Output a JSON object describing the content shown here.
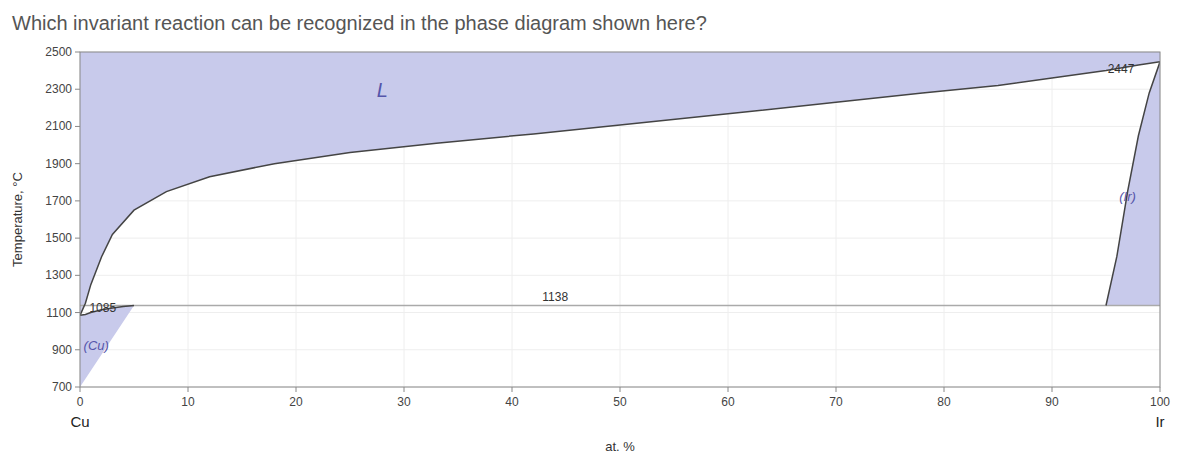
{
  "chart_data": {
    "type": "line",
    "title": "Which invariant reaction can be recognized in the phase diagram shown here?",
    "x_label": "at. %",
    "y_label": "Temperature, °C",
    "xlim": [
      0,
      100
    ],
    "ylim": [
      700,
      2500
    ],
    "xticks": [
      0,
      10,
      20,
      30,
      40,
      50,
      60,
      70,
      80,
      90,
      100
    ],
    "yticks": [
      700,
      900,
      1100,
      1300,
      1500,
      1700,
      1900,
      2100,
      2300,
      2500
    ],
    "color": "#c8caeb",
    "series": [
      {
        "color": "#444444",
        "x": [
          0,
          0.5,
          1,
          2,
          3,
          5,
          8,
          12,
          18,
          25,
          33,
          42,
          52,
          62,
          70,
          78,
          85,
          90,
          95,
          98,
          100
        ],
        "values": [
          1085,
          1150,
          1250,
          1400,
          1520,
          1650,
          1750,
          1830,
          1900,
          1960,
          2010,
          2060,
          2120,
          2180,
          2230,
          2280,
          2320,
          2360,
          2400,
          2430,
          2447
        ]
      },
      {
        "color": "#444444",
        "x": [
          0,
          0.5,
          1,
          2,
          3,
          4,
          5
        ],
        "values": [
          1085,
          1090,
          1100,
          1115,
          1125,
          1132,
          1138
        ]
      },
      {
        "color": "#444444",
        "x": [
          95,
          96,
          97,
          98,
          99,
          100
        ],
        "values": [
          1138,
          1400,
          1750,
          2050,
          2280,
          2447
        ]
      },
      {
        "color": "#aaaaaa",
        "x": [
          0,
          100
        ],
        "values": [
          1138,
          1138
        ]
      }
    ],
    "phase_labels": [
      {
        "text": "L",
        "x": 28,
        "y": 2260
      },
      {
        "text": "(Ir)",
        "x": 97,
        "y": 1700
      },
      {
        "text": "(Cu)",
        "x": 1.5,
        "y": 900
      }
    ],
    "annotations": [
      {
        "text": "1085",
        "x": 0.5,
        "y": 1085
      },
      {
        "text": "1138",
        "x": 44,
        "y": 1138
      },
      {
        "text": "2447",
        "x": 98,
        "y": 2455
      }
    ],
    "end_labels": [
      {
        "text": "Cu",
        "x": 0
      },
      {
        "text": "Ir",
        "x": 100
      }
    ]
  }
}
